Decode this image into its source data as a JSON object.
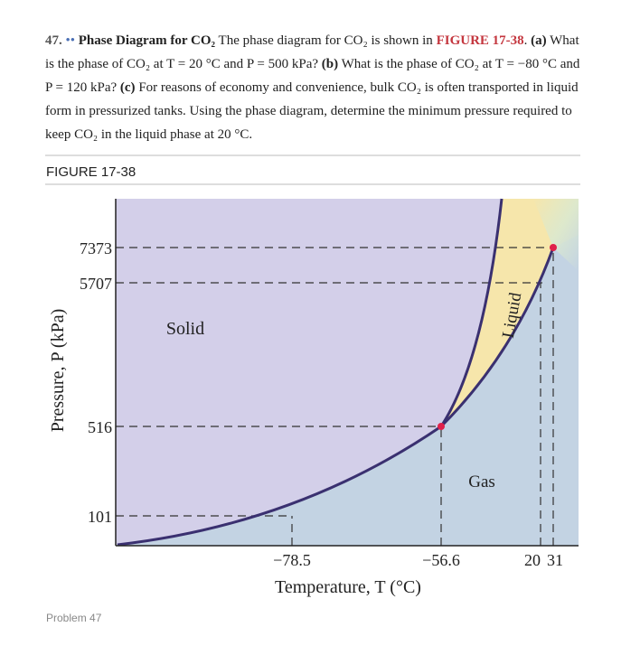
{
  "problem": {
    "number": "47.",
    "difficulty": "••",
    "title": "Phase Diagram for CO₂",
    "intro": " The phase diagram for CO₂ is shown in ",
    "figure_ref": "FIGURE 17-38",
    "intro_end": ".",
    "parts": [
      {
        "label": "(a)",
        "text": " What is the phase of CO₂ at T = 20 °C and P = 500 kPa? "
      },
      {
        "label": "(b)",
        "text": " What is the phase of CO₂ at T = −80 °C and P = 120 kPa? "
      },
      {
        "label": "(c)",
        "text": " For reasons of economy and convenience, bulk CO₂ is often transported in liquid form in pressurized tanks. Using the phase diagram, determine the minimum pressure required to keep CO₂ in the liquid phase at 20 °C."
      }
    ]
  },
  "figure": {
    "label": "FIGURE 17-38",
    "y_label": "Pressure, P (kPa)",
    "x_label": "Temperature, T (°C)",
    "y_ticks": [
      "7373",
      "5707",
      "516",
      "101"
    ],
    "x_ticks": [
      "−78.5",
      "−56.6",
      "20",
      "31"
    ],
    "regions": [
      "Solid",
      "Liquid",
      "Gas"
    ]
  },
  "footer": "Problem 47"
}
